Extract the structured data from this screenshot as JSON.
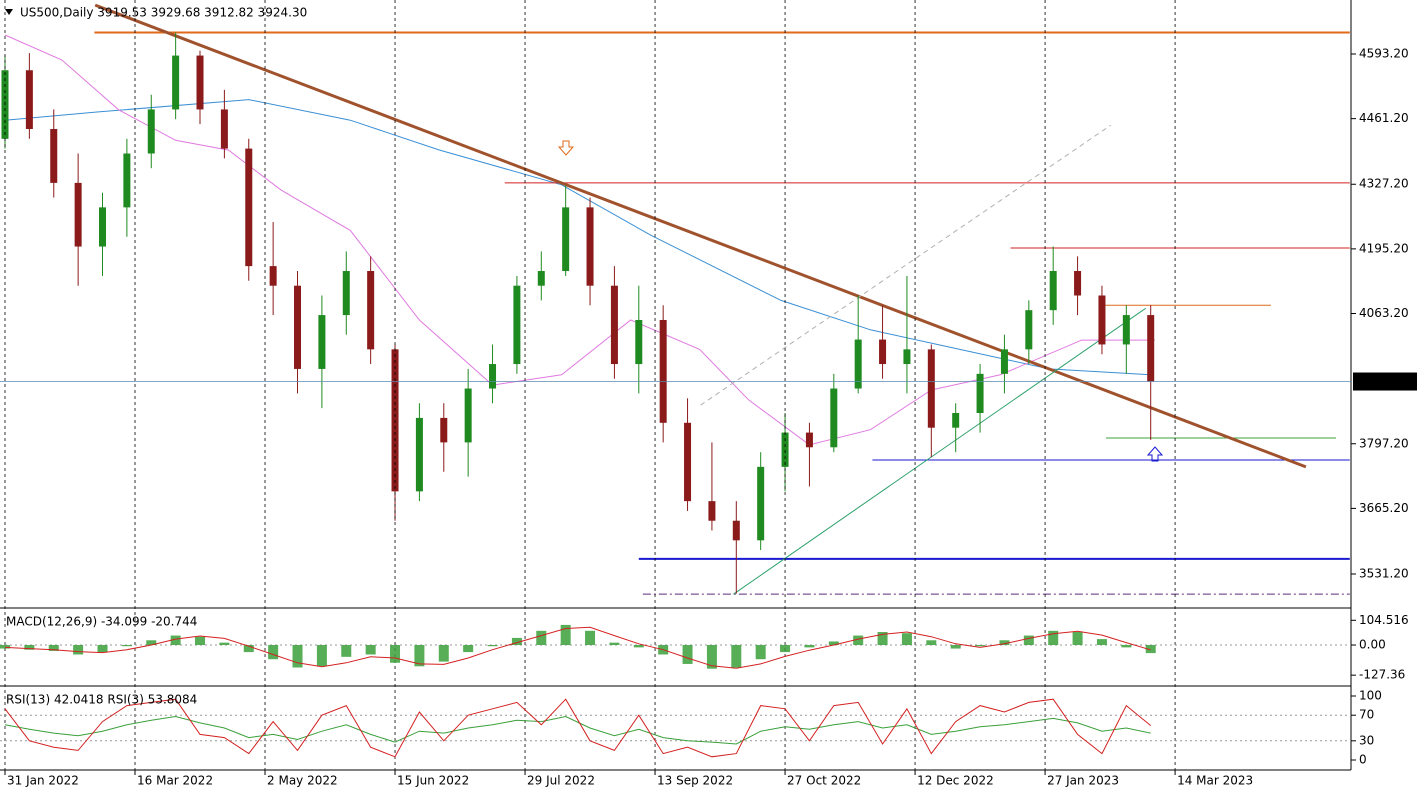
{
  "chart_data": [
    {
      "type": "candlestick",
      "title": "US500,Daily  3919.53 3929.68 3912.82 3924.30",
      "x": [
        0,
        6,
        12,
        18,
        24,
        30,
        36,
        42,
        48,
        54,
        60,
        66,
        72,
        78,
        84,
        90,
        96,
        102,
        108,
        114,
        120,
        126,
        132,
        138,
        144,
        150,
        156,
        162,
        168,
        174,
        180,
        186,
        192,
        198,
        204,
        210,
        216,
        222,
        228,
        234,
        240,
        246,
        252,
        258,
        264,
        270,
        276,
        282
      ],
      "open": [
        4420,
        4560,
        4440,
        4330,
        4200,
        4280,
        4390,
        4480,
        4590,
        4480,
        4400,
        4160,
        4120,
        3950,
        4060,
        4150,
        3990,
        3700,
        3850,
        3800,
        3910,
        3960,
        4120,
        4150,
        4280,
        4120,
        3960,
        4050,
        3840,
        3680,
        3640,
        3600,
        3750,
        3820,
        3790,
        3910,
        4010,
        3960,
        3990,
        3830,
        3860,
        3940,
        3990,
        4070,
        4150,
        4100,
        4000,
        4060
      ],
      "high": [
        4590,
        4595,
        4480,
        4390,
        4310,
        4420,
        4510,
        4637,
        4600,
        4520,
        4420,
        4250,
        4150,
        4100,
        4190,
        4180,
        4000,
        3880,
        3880,
        3950,
        4000,
        4140,
        4190,
        4325,
        4300,
        4160,
        4120,
        4080,
        3890,
        3800,
        3680,
        3780,
        3860,
        3840,
        3940,
        4100,
        4080,
        4140,
        4000,
        3880,
        3960,
        4020,
        4090,
        4200,
        4180,
        4120,
        4080,
        4080
      ],
      "low": [
        4400,
        4420,
        4300,
        4120,
        4140,
        4220,
        4360,
        4460,
        4450,
        4380,
        4130,
        4060,
        3900,
        3870,
        4020,
        3960,
        3640,
        3680,
        3740,
        3730,
        3880,
        3940,
        4090,
        4140,
        4080,
        3930,
        3900,
        3800,
        3660,
        3620,
        3491,
        3580,
        3700,
        3710,
        3780,
        3900,
        3930,
        3900,
        3770,
        3780,
        3820,
        3900,
        3960,
        4040,
        4060,
        3980,
        3940,
        3805
      ],
      "close": [
        4560,
        4440,
        4330,
        4200,
        4280,
        4390,
        4480,
        4590,
        4480,
        4400,
        4160,
        4120,
        3950,
        4060,
        4150,
        3990,
        3700,
        3850,
        3800,
        3910,
        3960,
        4120,
        4150,
        4280,
        4120,
        3960,
        4050,
        3840,
        3680,
        3640,
        3600,
        3750,
        3820,
        3790,
        3910,
        4010,
        3960,
        3990,
        3830,
        3860,
        3940,
        3990,
        4070,
        4150,
        4100,
        4000,
        4060,
        3924.3
      ],
      "up_color": "#1f8a1f",
      "down_color": "#8b1a1a",
      "series": [
        {
          "type": "line",
          "color": "#3a8fd6",
          "x": [
            0,
            23,
            60,
            85,
            107,
            137,
            159,
            191,
            213,
            235,
            257,
            282
          ],
          "values": [
            4458,
            4475,
            4500,
            4458,
            4397,
            4326,
            4223,
            4090,
            4030,
            3990,
            3950,
            3938
          ]
        },
        {
          "type": "line",
          "color": "#e07ae0",
          "x": [
            0,
            14,
            28,
            42,
            55,
            68,
            85,
            102,
            120,
            137,
            154,
            171,
            183,
            198,
            213,
            228,
            245,
            265,
            283
          ],
          "values": [
            4632,
            4581,
            4479,
            4417,
            4397,
            4315,
            4233,
            4050,
            3917,
            3938,
            4050,
            3990,
            3887,
            3795,
            3826,
            3907,
            3938,
            4009,
            4009
          ]
        }
      ],
      "levels": [
        {
          "price": 4637,
          "x": [
            22,
            331
          ],
          "color": "#e06a1a",
          "width": 2,
          "dash": "solid"
        },
        {
          "price": 4330,
          "x": [
            123,
            331
          ],
          "color": "#d42020",
          "width": 1,
          "dash": "solid"
        },
        {
          "price": 4197,
          "x": [
            247.5,
            331
          ],
          "color": "#d42020",
          "width": 1,
          "dash": "solid"
        },
        {
          "price": 4080,
          "x": [
            270,
            311.6
          ],
          "color": "#e06a1a",
          "width": 1,
          "dash": "solid"
        },
        {
          "price": 3809,
          "x": [
            271,
            327.6
          ],
          "color": "#3aa03a",
          "width": 1,
          "dash": "solid"
        },
        {
          "price": 3764,
          "x": [
            213.5,
            331
          ],
          "color": "#1a1ad0",
          "width": 1,
          "dash": "solid"
        },
        {
          "price": 3562,
          "x": [
            156,
            331
          ],
          "color": "#1a1ad0",
          "width": 2,
          "dash": "solid"
        },
        {
          "price": 3490,
          "x": [
            157,
            331
          ],
          "color": "#5a2a7a",
          "width": 1,
          "dash": "dashdot"
        }
      ],
      "trendlines": [
        {
          "x": [
            22.2,
            320.2
          ],
          "y": [
            4693,
            3750
          ],
          "color": "#a0522d",
          "width": 3,
          "dash": "solid"
        },
        {
          "x": [
            179.3,
            280.8
          ],
          "y": [
            3490,
            4074
          ],
          "color": "#2aa06a",
          "width": 1,
          "dash": "solid"
        },
        {
          "x": [
            171.2,
            272.2
          ],
          "y": [
            3876,
            4448
          ],
          "color": "#b0b0b0",
          "width": 1,
          "dash": "dash"
        }
      ],
      "last_price": {
        "value": 3924.3,
        "label": "3924.30"
      },
      "last_color": "#5a8ab0",
      "xlim": [
        -1.23,
        331.3
      ],
      "xticks": [
        {
          "value": 0,
          "label": "31 Jan 2022"
        },
        {
          "value": 32,
          "label": "16 Mar 2022"
        },
        {
          "value": 64,
          "label": "2 May 2022"
        },
        {
          "value": 96,
          "label": "15 Jun 2022"
        },
        {
          "value": 128,
          "label": "29 Jul 2022"
        },
        {
          "value": 160,
          "label": "13 Sep 2022"
        },
        {
          "value": 192,
          "label": "27 Oct 2022"
        },
        {
          "value": 224,
          "label": "12 Dec 2022"
        },
        {
          "value": 256,
          "label": "27 Jan 2023"
        },
        {
          "value": 288,
          "label": "14 Mar 2023"
        }
      ],
      "ylim": [
        3463.8,
        4703.5
      ],
      "yticks": [
        {
          "value": 4593.2,
          "label": "4593.20"
        },
        {
          "value": 4461.2,
          "label": "4461.20"
        },
        {
          "value": 4327.2,
          "label": "4327.20"
        },
        {
          "value": 4195.2,
          "label": "4195.20"
        },
        {
          "value": 4063.2,
          "label": "4063.20"
        },
        {
          "value": 3797.2,
          "label": "3797.20"
        },
        {
          "value": 3665.2,
          "label": "3665.20"
        },
        {
          "value": 3531.2,
          "label": "3531.20"
        }
      ],
      "grid": true
    },
    {
      "type": "bar",
      "title": "MACD(12,26,9) -34.099 -20.744",
      "x": [
        0,
        6,
        12,
        18,
        24,
        30,
        36,
        42,
        48,
        54,
        60,
        66,
        72,
        78,
        84,
        90,
        96,
        102,
        108,
        114,
        120,
        126,
        132,
        138,
        144,
        150,
        156,
        162,
        168,
        174,
        180,
        186,
        192,
        198,
        204,
        210,
        216,
        222,
        228,
        234,
        240,
        246,
        252,
        258,
        264,
        270,
        276,
        282
      ],
      "series": [
        {
          "type": "bar",
          "color": "#3aa03a",
          "values": [
            -15,
            -20,
            -25,
            -40,
            -30,
            -5,
            20,
            40,
            35,
            10,
            -30,
            -60,
            -95,
            -90,
            -50,
            -40,
            -75,
            -90,
            -70,
            -30,
            -5,
            30,
            60,
            85,
            60,
            10,
            -10,
            -40,
            -80,
            -100,
            -95,
            -60,
            -30,
            -10,
            15,
            40,
            55,
            50,
            20,
            -15,
            -5,
            20,
            40,
            60,
            55,
            25,
            -10,
            -34.099
          ]
        },
        {
          "type": "line",
          "color": "#d42020",
          "values": [
            -10,
            -15,
            -20,
            -28,
            -32,
            -20,
            0,
            25,
            38,
            28,
            -5,
            -40,
            -75,
            -92,
            -75,
            -50,
            -55,
            -80,
            -82,
            -55,
            -20,
            10,
            40,
            70,
            75,
            40,
            5,
            -20,
            -55,
            -88,
            -98,
            -80,
            -48,
            -22,
            0,
            25,
            45,
            55,
            35,
            5,
            -10,
            5,
            28,
            48,
            58,
            42,
            10,
            -20.744
          ]
        }
      ],
      "xlim": [
        -1.23,
        331.3
      ],
      "ylim": [
        -169,
        148
      ],
      "yticks": [
        104.516,
        {
          "value": 0,
          "label": "0.00"
        },
        -127.36
      ]
    },
    {
      "type": "line",
      "title": "RSI(13) 42.0418  RSI(3) 53.8084",
      "x": [
        0,
        6,
        12,
        18,
        24,
        30,
        36,
        42,
        48,
        54,
        60,
        66,
        72,
        78,
        84,
        90,
        96,
        102,
        108,
        114,
        120,
        126,
        132,
        138,
        144,
        150,
        156,
        162,
        168,
        174,
        180,
        186,
        192,
        198,
        204,
        210,
        216,
        222,
        228,
        234,
        240,
        246,
        252,
        258,
        264,
        270,
        276,
        282
      ],
      "series": [
        {
          "type": "line",
          "color": "#3aa03a",
          "values": [
            55,
            48,
            42,
            38,
            45,
            55,
            62,
            68,
            58,
            50,
            35,
            40,
            32,
            45,
            55,
            40,
            28,
            45,
            42,
            50,
            55,
            62,
            60,
            68,
            50,
            38,
            48,
            35,
            30,
            28,
            25,
            45,
            52,
            48,
            55,
            60,
            50,
            55,
            40,
            45,
            52,
            55,
            60,
            65,
            58,
            45,
            50,
            42.0418
          ]
        },
        {
          "type": "line",
          "color": "#d42020",
          "values": [
            80,
            30,
            20,
            15,
            60,
            85,
            90,
            95,
            40,
            35,
            10,
            60,
            15,
            70,
            85,
            20,
            5,
            75,
            30,
            70,
            80,
            90,
            55,
            95,
            30,
            15,
            70,
            10,
            20,
            5,
            10,
            85,
            80,
            30,
            85,
            90,
            25,
            80,
            10,
            60,
            85,
            75,
            90,
            95,
            40,
            10,
            85,
            53.8084
          ]
        }
      ],
      "levels": [
        70,
        30
      ],
      "xlim": [
        -1.23,
        331.3
      ],
      "ylim": [
        -15.6,
        112.5
      ],
      "yticks": [
        100,
        70,
        30,
        0
      ]
    }
  ]
}
